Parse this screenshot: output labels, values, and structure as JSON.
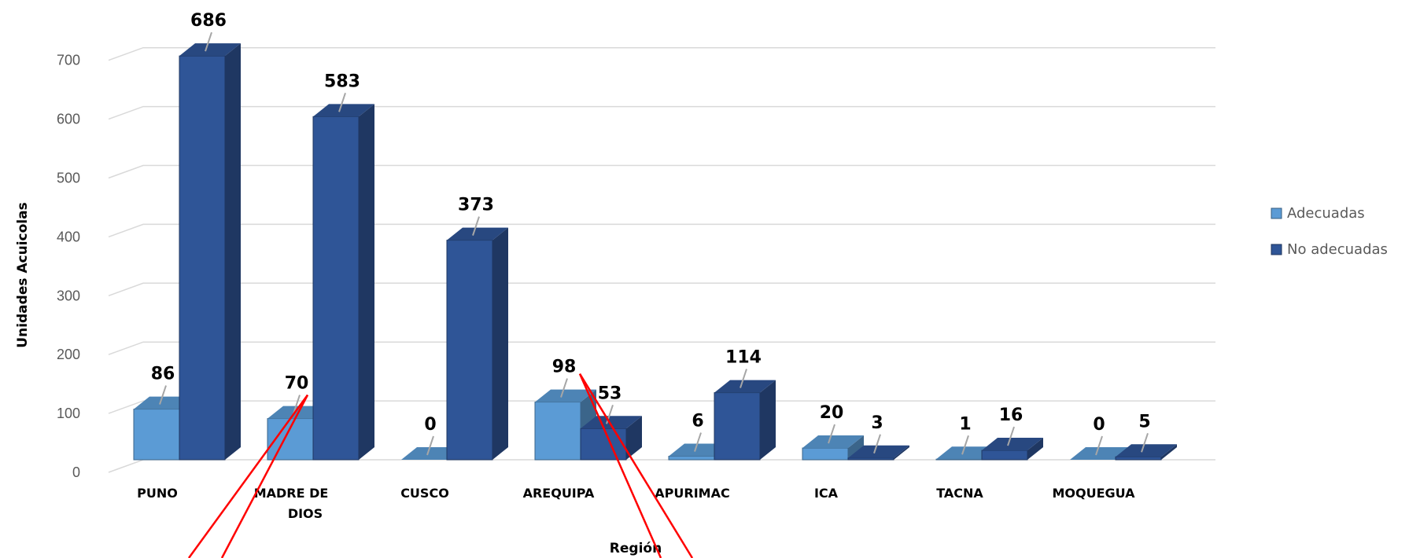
{
  "chart_data": {
    "type": "bar",
    "title": "",
    "xlabel": "Región",
    "ylabel": "Unidades Acuicolas",
    "categories": [
      "PUNO",
      "MADRE DE DIOS",
      "CUSCO",
      "AREQUIPA",
      "APURIMAC",
      "ICA",
      "TACNA",
      "MOQUEGUA"
    ],
    "series": [
      {
        "name": "Adecuadas",
        "values": [
          86,
          70,
          0,
          98,
          6,
          20,
          1,
          0
        ],
        "color": "#5b9bd5"
      },
      {
        "name": "No adecuadas",
        "values": [
          686,
          583,
          373,
          53,
          114,
          3,
          16,
          5
        ],
        "color": "#2f5597"
      }
    ],
    "ylim": [
      0,
      700
    ],
    "yticks": [
      0,
      100,
      200,
      300,
      400,
      500,
      600,
      700
    ],
    "grid": true,
    "legend_position": "right",
    "annotation_color": "#ff0000"
  }
}
